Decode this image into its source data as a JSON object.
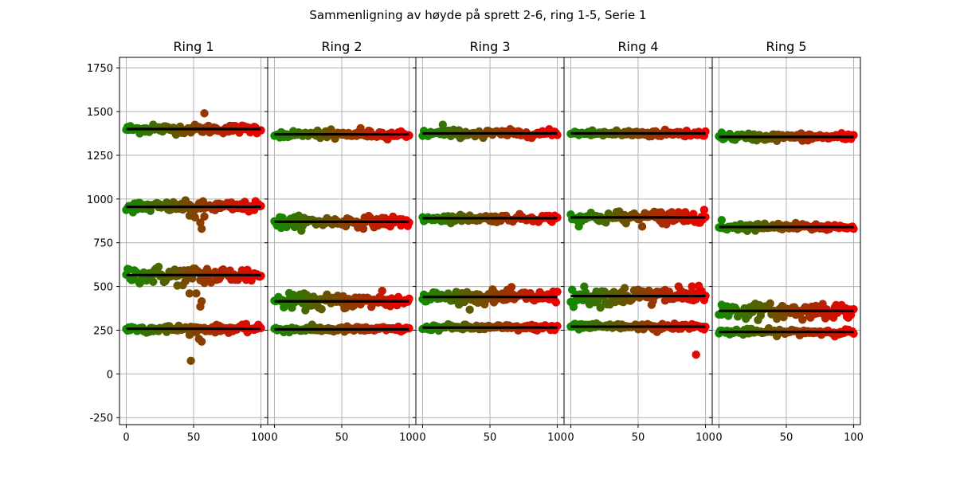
{
  "chart_data": {
    "type": "scatter",
    "title": "Sammenligning av høyde på sprett 2-6, ring 1-5, Serie 1",
    "ylim": [
      -290,
      1810
    ],
    "xlim": [
      -5,
      105
    ],
    "yticks": [
      -250,
      0,
      250,
      500,
      750,
      1000,
      1250,
      1500,
      1750
    ],
    "xticks": [
      0,
      50,
      100
    ],
    "grid": true,
    "colors": {
      "start": "#118a00",
      "end": "#ee0000",
      "mean_line": "#000000",
      "grid": "#b0b0b0"
    },
    "panels": [
      {
        "title": "Ring 1",
        "bounces": [
          {
            "level": 1400,
            "noise": 12,
            "outliers": [
              [
                58,
                1490
              ],
              [
                20,
                1425
              ]
            ]
          },
          {
            "level": 955,
            "noise": 15,
            "outliers": [
              [
                47,
                905
              ],
              [
                51,
                895
              ],
              [
                55,
                865
              ],
              [
                56,
                830
              ],
              [
                58,
                900
              ]
            ]
          },
          {
            "level": 565,
            "noise": 25,
            "outliers": [
              [
                38,
                505
              ],
              [
                47,
                460
              ],
              [
                52,
                460
              ],
              [
                55,
                385
              ],
              [
                56,
                415
              ],
              [
                58,
                520
              ],
              [
                60,
                600
              ]
            ]
          },
          {
            "level": 258,
            "noise": 10,
            "outliers": [
              [
                48,
                75
              ],
              [
                54,
                200
              ],
              [
                56,
                185
              ],
              [
                30,
                240
              ]
            ]
          }
        ]
      },
      {
        "title": "Ring 2",
        "bounces": [
          {
            "level": 1370,
            "noise": 10,
            "outliers": [
              [
                45,
                1345
              ],
              [
                64,
                1405
              ]
            ]
          },
          {
            "level": 870,
            "noise": 15,
            "outliers": [
              [
                5,
                835
              ],
              [
                15,
                840
              ]
            ]
          },
          {
            "level": 415,
            "noise": 20,
            "outliers": [
              [
                80,
                475
              ],
              [
                35,
                370
              ]
            ]
          },
          {
            "level": 255,
            "noise": 8,
            "outliers": []
          }
        ]
      },
      {
        "title": "Ring 3",
        "bounces": [
          {
            "level": 1375,
            "noise": 10,
            "outliers": [
              [
                15,
                1425
              ],
              [
                45,
                1350
              ]
            ]
          },
          {
            "level": 890,
            "noise": 10,
            "outliers": []
          },
          {
            "level": 440,
            "noise": 18,
            "outliers": []
          },
          {
            "level": 265,
            "noise": 8,
            "outliers": []
          }
        ]
      },
      {
        "title": "Ring 4",
        "bounces": [
          {
            "level": 1375,
            "noise": 10,
            "outliers": []
          },
          {
            "level": 895,
            "noise": 18,
            "outliers": [
              [
                68,
                860
              ],
              [
                75,
                925
              ],
              [
                80,
                925
              ],
              [
                85,
                925
              ]
            ]
          },
          {
            "level": 445,
            "noise": 25,
            "outliers": [
              [
                70,
                480
              ],
              [
                80,
                500
              ],
              [
                90,
                500
              ],
              [
                60,
                395
              ]
            ]
          },
          {
            "level": 270,
            "noise": 8,
            "outliers": [
              [
                93,
                110
              ],
              [
                64,
                240
              ]
            ]
          }
        ]
      },
      {
        "title": "Ring 5",
        "bounces": [
          {
            "level": 1355,
            "noise": 10,
            "outliers": [
              [
                2,
                1380
              ]
            ]
          },
          {
            "level": 840,
            "noise": 10,
            "outliers": [
              [
                2,
                880
              ]
            ]
          },
          {
            "level": 360,
            "noise": 20,
            "outliers": [
              [
                2,
                395
              ],
              [
                62,
                310
              ],
              [
                77,
                400
              ]
            ]
          },
          {
            "level": 240,
            "noise": 8,
            "outliers": []
          }
        ]
      }
    ]
  }
}
